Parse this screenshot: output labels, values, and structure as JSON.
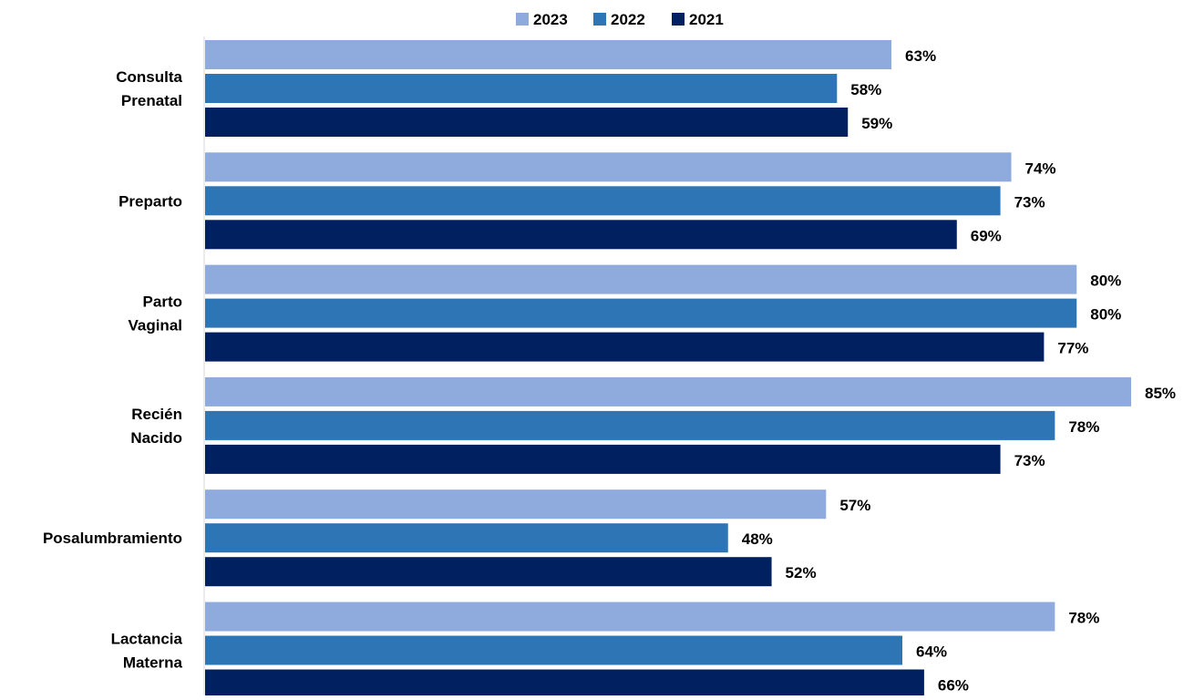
{
  "chart_data": {
    "type": "bar",
    "orientation": "horizontal",
    "title": "",
    "xlabel": "",
    "ylabel": "",
    "categories": [
      [
        "Consulta",
        "Prenatal"
      ],
      [
        "Preparto"
      ],
      [
        "Parto",
        "Vaginal"
      ],
      [
        "Recién",
        "Nacido"
      ],
      [
        "Posalumbramiento"
      ],
      [
        "Lactancia",
        "Materna"
      ]
    ],
    "series": [
      {
        "name": "2023",
        "color": "#8FAADC",
        "values": [
          63,
          74,
          80,
          85,
          57,
          78
        ],
        "labels": [
          "63%",
          "74%",
          "80%",
          "85%",
          "57%",
          "78%"
        ]
      },
      {
        "name": "2022",
        "color": "#2E75B6",
        "values": [
          58,
          73,
          80,
          78,
          48,
          64
        ],
        "labels": [
          "58%",
          "73%",
          "80%",
          "78%",
          "48%",
          "64%"
        ]
      },
      {
        "name": "2021",
        "color": "#002060",
        "values": [
          59,
          69,
          77,
          73,
          52,
          66
        ],
        "labels": [
          "59%",
          "69%",
          "77%",
          "73%",
          "52%",
          "66%"
        ]
      }
    ],
    "xlim": [
      0,
      85
    ],
    "grid": false,
    "legend_position": "top"
  }
}
